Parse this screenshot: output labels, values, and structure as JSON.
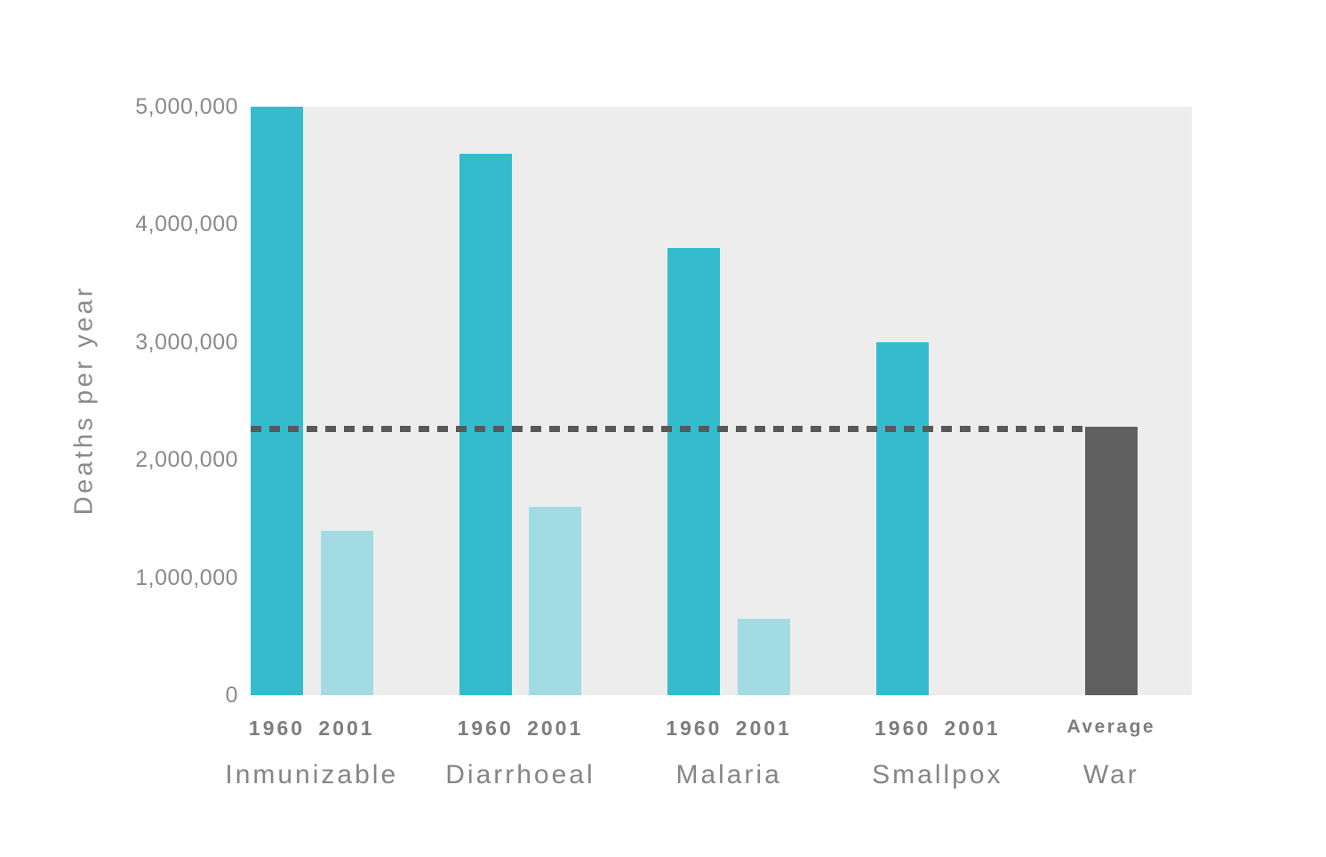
{
  "chart_data": {
    "type": "bar",
    "title": "",
    "xlabel": "",
    "ylabel": "Deaths per year",
    "ylim": [
      0,
      5000000
    ],
    "grid": false,
    "legend": "none",
    "y_ticks": [
      {
        "value": 5000000,
        "label": "5,000,000"
      },
      {
        "value": 4000000,
        "label": "4,000,000"
      },
      {
        "value": 3000000,
        "label": "3,000,000"
      },
      {
        "value": 2000000,
        "label": "2,000,000"
      },
      {
        "value": 1000000,
        "label": "1,000,000"
      },
      {
        "value": 0,
        "label": "0"
      }
    ],
    "categories": [
      "Inmunizable",
      "Diarrhoeal",
      "Malaria",
      "Smallpox",
      "War"
    ],
    "groups": [
      {
        "label": "Inmunizable",
        "bars": [
          {
            "label": "1960",
            "value": 5000000,
            "color_key": "teal"
          },
          {
            "label": "2001",
            "value": 1400000,
            "color_key": "lightblue"
          }
        ]
      },
      {
        "label": "Diarrhoeal",
        "bars": [
          {
            "label": "1960",
            "value": 4600000,
            "color_key": "teal"
          },
          {
            "label": "2001",
            "value": 1600000,
            "color_key": "lightblue"
          }
        ]
      },
      {
        "label": "Malaria",
        "bars": [
          {
            "label": "1960",
            "value": 3800000,
            "color_key": "teal"
          },
          {
            "label": "2001",
            "value": 650000,
            "color_key": "lightblue"
          }
        ]
      },
      {
        "label": "Smallpox",
        "bars": [
          {
            "label": "1960",
            "value": 3000000,
            "color_key": "teal"
          },
          {
            "label": "2001",
            "value": 0,
            "color_key": "lightblue"
          }
        ]
      },
      {
        "label": "War",
        "bars": [
          {
            "label": "Average",
            "value": 2280000,
            "color_key": "darkgray"
          }
        ]
      }
    ],
    "reference_line": {
      "value": 2260000,
      "style": "dashed",
      "color": "#595959"
    },
    "colors": {
      "teal": "#34bccd",
      "lightblue": "#a2dbe4",
      "darkgray": "#5f5f5f",
      "plot_background": "#ededed",
      "axis_text": "#8a8a8a"
    }
  }
}
